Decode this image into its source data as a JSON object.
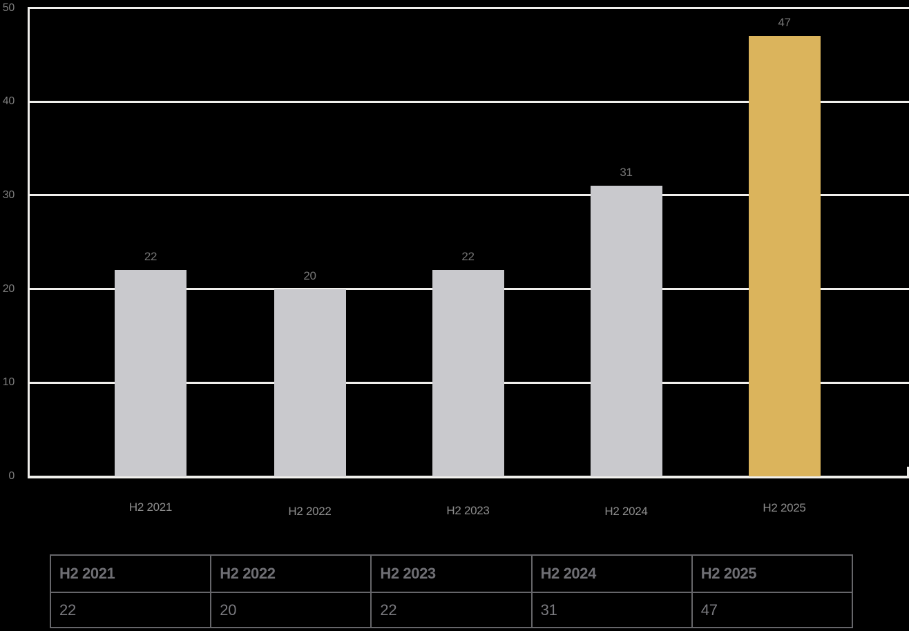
{
  "chart_data": {
    "type": "bar",
    "categories": [
      "H2 2021",
      "H2 2022",
      "H2 2023",
      "H2 2024",
      "H2 2025"
    ],
    "values": [
      22,
      20,
      22,
      31,
      47
    ],
    "data_labels": [
      "22",
      "20",
      "22",
      "31",
      "47"
    ],
    "y_ticks": [
      0,
      10,
      20,
      30,
      40,
      50
    ],
    "ylim": [
      0,
      50
    ],
    "grid": "horizontal",
    "legend": "none",
    "bar_color": "#c9c9cd",
    "highlight_color": "#dbb45c",
    "highlight_index": 4,
    "background_color": "#000000",
    "axis_color": "#f0efec",
    "y_tick_label_color": "#7e7e7e",
    "x_tick_label_color": "#8d8d8d",
    "data_label_color": "#757575"
  },
  "table": {
    "headers": [
      "H2 2021",
      "H2 2022",
      "H2 2023",
      "H2 2024",
      "H2 2025"
    ],
    "values": [
      "22",
      "20",
      "22",
      "31",
      "47"
    ],
    "border_color": "#66666a",
    "header_text_color": "#6f6f74",
    "value_text_color": "#7a7a7f"
  }
}
